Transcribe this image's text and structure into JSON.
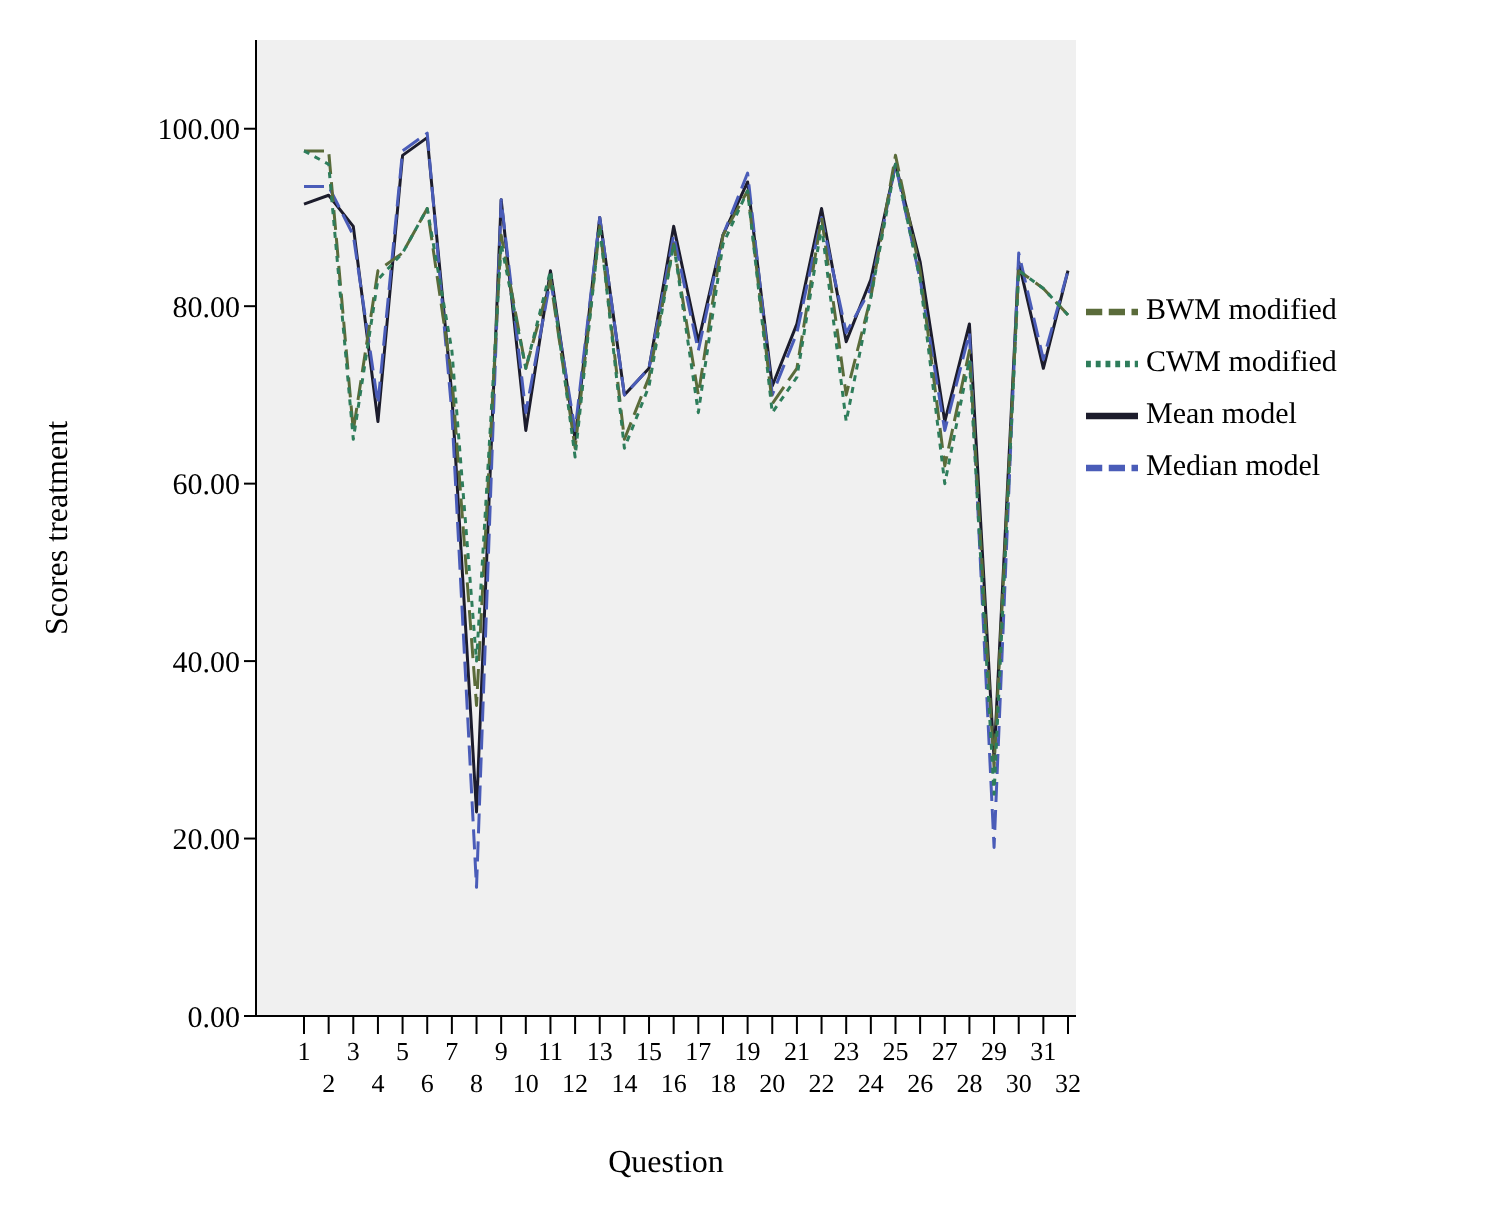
{
  "chart_data": {
    "type": "line",
    "xlabel": "Question",
    "ylabel": "Scores treatment",
    "categories": [
      "1",
      "2",
      "3",
      "4",
      "5",
      "6",
      "7",
      "8",
      "9",
      "10",
      "11",
      "12",
      "13",
      "14",
      "15",
      "16",
      "17",
      "18",
      "19",
      "20",
      "21",
      "22",
      "23",
      "24",
      "25",
      "26",
      "27",
      "28",
      "29",
      "30",
      "31",
      "32"
    ],
    "series": [
      {
        "name": "Mean model",
        "color": "#1c1c2c",
        "line_style": "solid",
        "values": [
          91.5,
          92.5,
          89,
          67,
          97,
          99,
          70,
          23,
          92,
          66,
          84,
          65,
          90,
          70,
          73,
          89,
          76,
          88,
          94,
          71,
          78,
          91,
          76,
          83,
          96,
          85,
          67,
          78,
          29,
          85,
          73,
          84
        ]
      },
      {
        "name": "Median model",
        "color": "#4a5cb8",
        "line_style": "dashed",
        "values": [
          93.5,
          93.5,
          88,
          69,
          97.5,
          99.5,
          68,
          14.5,
          92,
          68,
          83,
          66,
          90,
          70,
          73,
          88,
          75,
          88,
          95,
          70,
          77,
          90,
          77,
          82,
          96,
          83,
          66,
          77,
          19,
          86,
          74,
          84
        ]
      },
      {
        "name": "BWM modified",
        "color": "#5a6b3a",
        "line_style": "dashed",
        "values": [
          97.5,
          97.5,
          66,
          84,
          86,
          91,
          72,
          35,
          88,
          73,
          83,
          64,
          89,
          65,
          72,
          87,
          70,
          88,
          93,
          69,
          73,
          90,
          70,
          81,
          97,
          84,
          62,
          75,
          28,
          84,
          82,
          79
        ]
      },
      {
        "name": "CWM modified",
        "color": "#2e7d5b",
        "line_style": "dotted",
        "values": [
          97.5,
          96,
          65,
          83,
          86,
          91,
          75,
          40,
          87,
          73,
          84,
          63,
          89,
          64,
          71,
          87,
          68,
          87,
          93,
          68,
          72,
          89,
          67,
          81,
          96,
          83,
          60,
          74,
          25,
          84,
          82,
          79
        ]
      }
    ],
    "ylim": [
      0,
      110
    ],
    "yticks": [
      {
        "value": 0,
        "label": "0.00"
      },
      {
        "value": 20,
        "label": "20.00"
      },
      {
        "value": 40,
        "label": "40.00"
      },
      {
        "value": 60,
        "label": "60.00"
      },
      {
        "value": 80,
        "label": "80.00"
      },
      {
        "value": 100,
        "label": "100.00"
      }
    ],
    "grid": false,
    "legend": "top right",
    "marker": "none"
  }
}
